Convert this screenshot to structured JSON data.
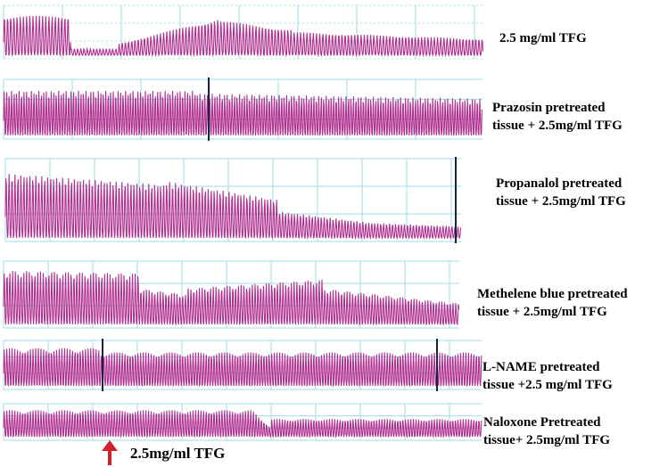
{
  "chart_data": {
    "type": "line",
    "description_style": "isometric contraction tracings",
    "trace_color": "#b0308f",
    "grid_color": "#9fdde8",
    "marker_color": "#1a2340",
    "arrow_color": "#d4202a",
    "panels": [
      {
        "label_lines": [
          "2.5 mg/ml TFG"
        ],
        "segments": [
          [
            0,
            0.14,
            0.85,
            0.85
          ],
          [
            0.14,
            0.24,
            0.14,
            0.14
          ],
          [
            0.24,
            0.45,
            0.25,
            0.8
          ],
          [
            0.45,
            0.6,
            0.75,
            0.55
          ],
          [
            0.6,
            1,
            0.5,
            0.35
          ]
        ]
      },
      {
        "label_lines": [
          "Prazosin pretreated",
          "tissue + 2.5mg/ml TFG"
        ],
        "segments": [
          [
            0,
            0.4,
            0.85,
            0.85
          ],
          [
            0.4,
            1,
            0.8,
            0.7
          ]
        ]
      },
      {
        "label_lines": [
          "Propanalol pretreated",
          "tissue + 2.5mg/ml TFG"
        ],
        "segments": [
          [
            0,
            0.35,
            0.85,
            0.7
          ],
          [
            0.35,
            0.6,
            0.75,
            0.5
          ],
          [
            0.6,
            0.8,
            0.35,
            0.2
          ],
          [
            0.8,
            1,
            0.2,
            0.15
          ]
        ]
      },
      {
        "label_lines": [
          "Methelene blue pretreated",
          "tissue + 2.5mg/ml TFG"
        ],
        "segments": [
          [
            0,
            0.3,
            0.9,
            0.85
          ],
          [
            0.3,
            0.4,
            0.6,
            0.5
          ],
          [
            0.4,
            0.7,
            0.6,
            0.75
          ],
          [
            0.7,
            1,
            0.6,
            0.35
          ]
        ]
      },
      {
        "label_lines": [
          "L-NAME pretreated",
          "tissue +2.5 mg/ml TFG"
        ],
        "segments": [
          [
            0,
            0.2,
            0.9,
            0.9
          ],
          [
            0.2,
            1,
            0.8,
            0.8
          ]
        ]
      },
      {
        "label_lines": [
          "Naloxone Pretreated",
          "tissue+ 2.5mg/ml TFG"
        ],
        "segments": [
          [
            0,
            0.52,
            0.9,
            0.9
          ],
          [
            0.52,
            0.56,
            0.9,
            0.3
          ],
          [
            0.56,
            1,
            0.6,
            0.6
          ]
        ]
      }
    ],
    "treatment_arrow_label": "2.5mg/ml TFG"
  }
}
